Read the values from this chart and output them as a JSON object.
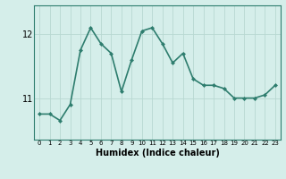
{
  "x": [
    0,
    1,
    2,
    3,
    4,
    5,
    6,
    7,
    8,
    9,
    10,
    11,
    12,
    13,
    14,
    15,
    16,
    17,
    18,
    19,
    20,
    21,
    22,
    23
  ],
  "y": [
    10.75,
    10.75,
    10.65,
    10.9,
    11.75,
    12.1,
    11.85,
    11.7,
    11.1,
    11.6,
    12.05,
    12.1,
    11.85,
    11.55,
    11.7,
    11.3,
    11.2,
    11.2,
    11.15,
    11.0,
    11.0,
    11.0,
    11.05,
    11.2
  ],
  "line_color": "#2e7d6e",
  "marker": "D",
  "marker_size": 2,
  "bg_color": "#d5eeea",
  "grid_color": "#b8d8d2",
  "xlabel": "Humidex (Indice chaleur)",
  "ylabel": "",
  "yticks": [
    11,
    12
  ],
  "ylim": [
    10.35,
    12.45
  ],
  "xlim": [
    -0.5,
    23.5
  ],
  "title": "",
  "line_width": 1.2,
  "xlabel_fontsize": 7,
  "xtick_fontsize": 5,
  "ytick_fontsize": 7
}
